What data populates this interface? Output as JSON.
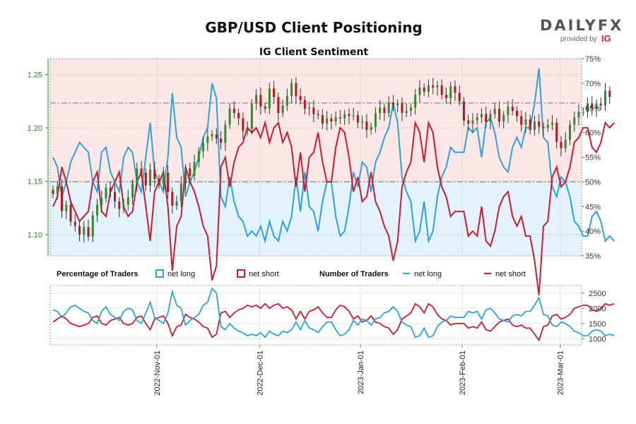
{
  "chart_data": {
    "type": "line",
    "title": "GBP/USD Client Positioning",
    "subtitle": "IG Client Sentiment",
    "branding": {
      "name": "DAILYFX",
      "provided_by": "provided by",
      "provider": "IG"
    },
    "price_axis": {
      "ticks": [
        "1.25",
        "1.20",
        "1.15",
        "1.10"
      ],
      "ylim": [
        1.08,
        1.265
      ]
    },
    "sentiment_axis": {
      "ticks": [
        "75%",
        "70%",
        "65%",
        "60%",
        "55%",
        "50%",
        "45%",
        "40%",
        "35%"
      ],
      "ylim": [
        35,
        75
      ]
    },
    "traders_axis": {
      "ticks": [
        "2500",
        "2000",
        "1500",
        "1000"
      ],
      "ylim": [
        800,
        2750
      ]
    },
    "x_tick_labels": [
      "2022-Nov-01",
      "2022-Dec-01",
      "2023-Jan-01",
      "2023-Feb-01",
      "2023-Mar-01"
    ],
    "n_sessions": 120,
    "reference_lines_pct": [
      66,
      50
    ],
    "legend": {
      "percentage_title": "Percentage of Traders",
      "number_title": "Number of Traders",
      "net_long": "net long",
      "net_short": "net short"
    },
    "series": [
      {
        "name": "net long %",
        "color": "#2aa3e0",
        "values": [
          55,
          53,
          47,
          50,
          54,
          56,
          58,
          57,
          56,
          50,
          48,
          56,
          57,
          52,
          50,
          48,
          55,
          57,
          56,
          50,
          48,
          55,
          62,
          52,
          50,
          48,
          55,
          68,
          59,
          57,
          47,
          50,
          52,
          55,
          59,
          61,
          70,
          67,
          47,
          45,
          51,
          46,
          43,
          42,
          39,
          40,
          39,
          41,
          38,
          42,
          39,
          38,
          42,
          40,
          43,
          51,
          44,
          52,
          45,
          44,
          40,
          46,
          50,
          50,
          43,
          39,
          40,
          45,
          52,
          49,
          54,
          53,
          48,
          54,
          56,
          59,
          61,
          66,
          62,
          51,
          48,
          46,
          38,
          40,
          46,
          38,
          40,
          47,
          51,
          53,
          57,
          56,
          56,
          56,
          61,
          60,
          61,
          55,
          62,
          63,
          60,
          55,
          53,
          52,
          57,
          59,
          57,
          61,
          61,
          66,
          73,
          59,
          58,
          49,
          47,
          51,
          50,
          47,
          42,
          41,
          39,
          39,
          43,
          44,
          42,
          38,
          39,
          38
        ]
      },
      {
        "name": "net short %",
        "color": "#cc1b30",
        "values": [
          45,
          47,
          53,
          50,
          46,
          44,
          42,
          43,
          44,
          50,
          52,
          44,
          43,
          48,
          50,
          52,
          45,
          43,
          44,
          50,
          52,
          45,
          38,
          48,
          50,
          52,
          45,
          32,
          41,
          43,
          53,
          50,
          48,
          45,
          41,
          39,
          30,
          33,
          53,
          55,
          49,
          54,
          57,
          58,
          61,
          60,
          61,
          59,
          62,
          58,
          61,
          62,
          58,
          60,
          57,
          49,
          56,
          48,
          55,
          56,
          60,
          54,
          50,
          50,
          57,
          61,
          60,
          55,
          48,
          51,
          46,
          47,
          52,
          46,
          44,
          41,
          39,
          34,
          38,
          49,
          52,
          54,
          62,
          60,
          54,
          62,
          60,
          53,
          49,
          47,
          43,
          44,
          44,
          44,
          39,
          40,
          39,
          45,
          38,
          37,
          40,
          45,
          47,
          48,
          43,
          41,
          43,
          39,
          39,
          34,
          27,
          41,
          42,
          51,
          53,
          49,
          50,
          53,
          58,
          59,
          61,
          61,
          57,
          56,
          58,
          62,
          61,
          62
        ]
      },
      {
        "name": "net long traders",
        "color": "#2aa3e0",
        "values": [
          1950,
          1900,
          1700,
          1850,
          2050,
          2100,
          2000,
          1900,
          1850,
          1600,
          1500,
          1900,
          2050,
          1800,
          1700,
          1600,
          1900,
          2000,
          1950,
          1600,
          1500,
          1850,
          2200,
          1700,
          1600,
          1500,
          1850,
          2550,
          2100,
          2000,
          1450,
          1600,
          1700,
          1800,
          2100,
          2200,
          2650,
          2500,
          1400,
          1300,
          1500,
          1350,
          1250,
          1200,
          1100,
          1150,
          1100,
          1200,
          1050,
          1250,
          1150,
          1100,
          1250,
          1200,
          1300,
          1550,
          1300,
          1600,
          1350,
          1300,
          1200,
          1400,
          1550,
          1550,
          1300,
          1100,
          1150,
          1300,
          1600,
          1450,
          1650,
          1600,
          1450,
          1650,
          1700,
          1850,
          1900,
          2050,
          1900,
          1550,
          1450,
          1400,
          1050,
          1100,
          1350,
          1050,
          1100,
          1400,
          1550,
          1600,
          1750,
          1700,
          1700,
          1700,
          1900,
          1850,
          1900,
          1650,
          1950,
          2000,
          1850,
          1650,
          1600,
          1550,
          1750,
          1800,
          1750,
          1900,
          1900,
          2100,
          2350,
          1800,
          1750,
          1450,
          1400,
          1550,
          1500,
          1400,
          1250,
          1200,
          1100,
          1100,
          1250,
          1300,
          1250,
          1100,
          1150,
          1100
        ]
      },
      {
        "name": "net short traders",
        "color": "#cc1b30",
        "values": [
          1550,
          1650,
          1750,
          1650,
          1500,
          1450,
          1400,
          1450,
          1500,
          1700,
          1750,
          1500,
          1450,
          1600,
          1650,
          1700,
          1500,
          1450,
          1500,
          1700,
          1750,
          1500,
          1300,
          1650,
          1700,
          1750,
          1500,
          1100,
          1400,
          1450,
          1800,
          1700,
          1650,
          1550,
          1400,
          1350,
          1050,
          1150,
          1850,
          1900,
          1700,
          1850,
          1950,
          2000,
          2100,
          2050,
          2100,
          2000,
          2150,
          2000,
          2100,
          2150,
          2000,
          2050,
          1950,
          1650,
          1900,
          1650,
          1900,
          1950,
          2050,
          1850,
          1700,
          1700,
          1950,
          2100,
          2050,
          1900,
          1650,
          1750,
          1550,
          1600,
          1750,
          1550,
          1500,
          1400,
          1350,
          1150,
          1300,
          1650,
          1750,
          1850,
          2150,
          2050,
          1850,
          2150,
          2050,
          1800,
          1650,
          1600,
          1450,
          1500,
          1500,
          1500,
          1350,
          1400,
          1350,
          1550,
          1300,
          1250,
          1400,
          1550,
          1600,
          1650,
          1450,
          1400,
          1450,
          1350,
          1350,
          1150,
          950,
          1400,
          1450,
          1750,
          1800,
          1650,
          1700,
          1800,
          2000,
          2050,
          2100,
          2100,
          1950,
          1900,
          2000,
          2150,
          2100,
          2150
        ]
      }
    ],
    "price_close": [
      1.138,
      1.145,
      1.122,
      1.128,
      1.112,
      1.108,
      1.1,
      1.107,
      1.098,
      1.118,
      1.128,
      1.134,
      1.144,
      1.14,
      1.131,
      1.124,
      1.128,
      1.135,
      1.148,
      1.162,
      1.158,
      1.146,
      1.161,
      1.152,
      1.147,
      1.158,
      1.14,
      1.127,
      1.131,
      1.148,
      1.162,
      1.155,
      1.168,
      1.178,
      1.186,
      1.192,
      1.194,
      1.19,
      1.186,
      1.203,
      1.218,
      1.214,
      1.209,
      1.197,
      1.199,
      1.223,
      1.231,
      1.22,
      1.218,
      1.237,
      1.229,
      1.214,
      1.221,
      1.23,
      1.242,
      1.23,
      1.226,
      1.218,
      1.219,
      1.213,
      1.212,
      1.204,
      1.209,
      1.206,
      1.21,
      1.209,
      1.213,
      1.211,
      1.212,
      1.205,
      1.206,
      1.198,
      1.201,
      1.214,
      1.219,
      1.214,
      1.224,
      1.221,
      1.223,
      1.214,
      1.216,
      1.219,
      1.231,
      1.238,
      1.234,
      1.24,
      1.238,
      1.24,
      1.231,
      1.228,
      1.239,
      1.233,
      1.225,
      1.207,
      1.204,
      1.207,
      1.21,
      1.213,
      1.206,
      1.213,
      1.218,
      1.206,
      1.212,
      1.22,
      1.216,
      1.211,
      1.203,
      1.208,
      1.198,
      1.206,
      1.201,
      1.2,
      1.203,
      1.205,
      1.187,
      1.181,
      1.189,
      1.203,
      1.21,
      1.215,
      1.215,
      1.223,
      1.218,
      1.223,
      1.221,
      1.235,
      1.229
    ]
  }
}
